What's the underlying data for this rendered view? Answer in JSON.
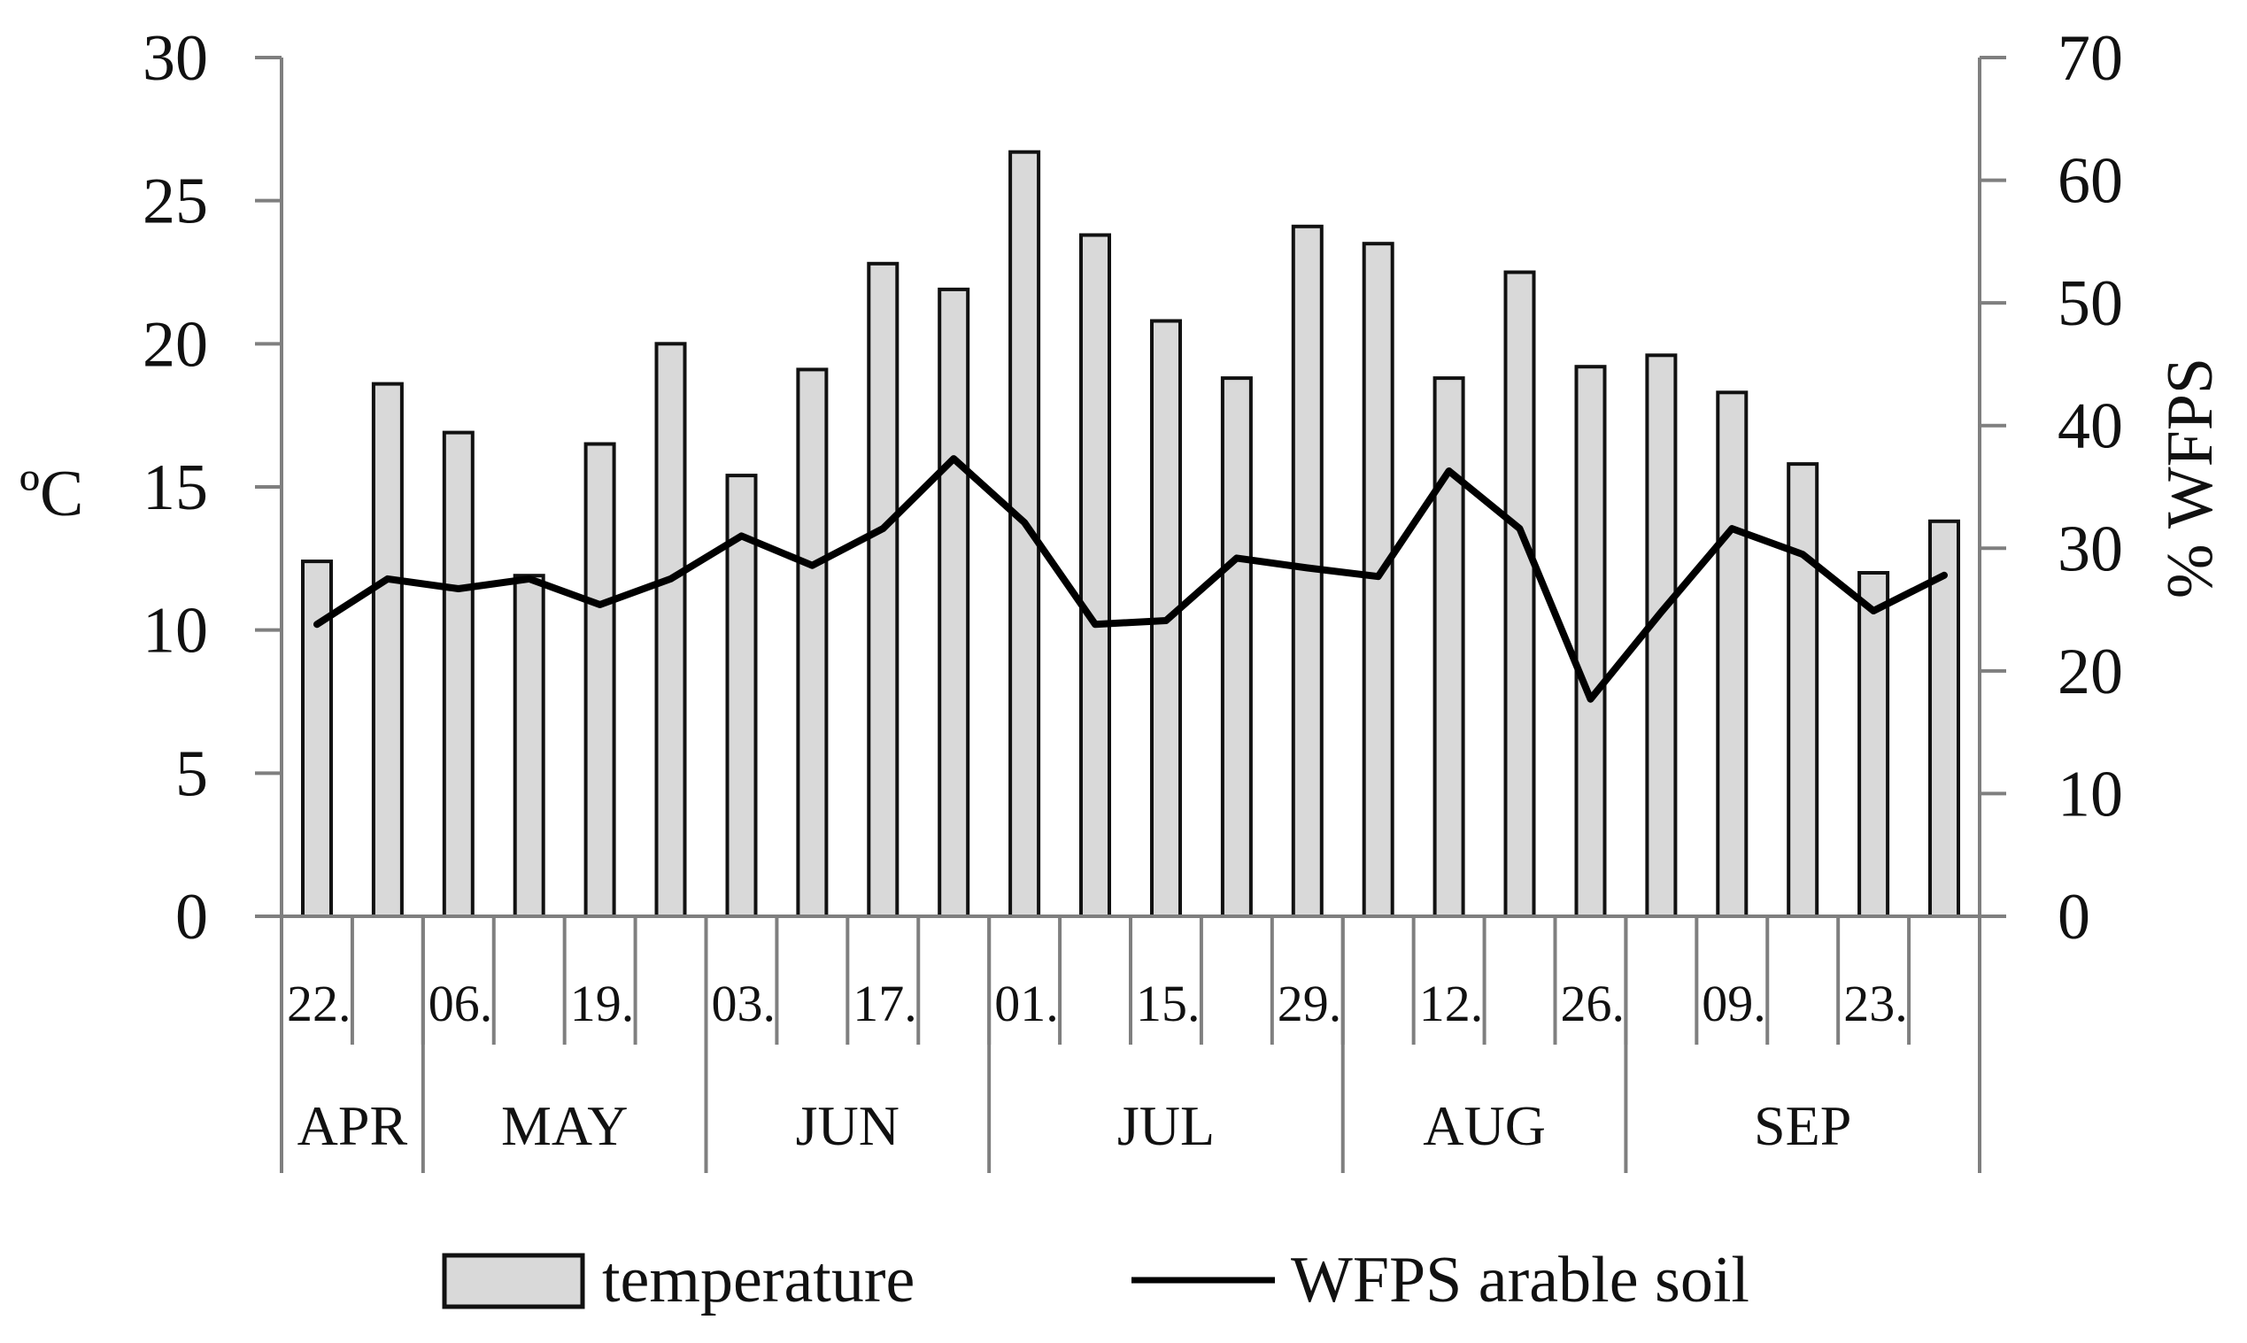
{
  "chart_data": {
    "type": "bar+line",
    "title": "",
    "legend_position": "bottom",
    "series": [
      {
        "name": "temperature",
        "type": "bar",
        "axis": "left",
        "color": "#d9d9d9",
        "values": [
          12.4,
          18.6,
          16.9,
          11.9,
          16.5,
          20.0,
          15.4,
          19.1,
          22.8,
          21.9,
          26.7,
          23.8,
          20.8,
          18.8,
          24.1,
          23.5,
          18.8,
          22.5,
          19.2,
          19.6,
          18.3,
          15.8,
          12.0,
          13.8
        ]
      },
      {
        "name": "WFPS arable soil",
        "type": "line",
        "axis": "right",
        "color": "#000000",
        "values": [
          23.8,
          27.5,
          26.7,
          27.5,
          25.4,
          27.5,
          31.0,
          28.6,
          31.6,
          37.3,
          32.1,
          23.8,
          24.1,
          29.2,
          28.4,
          27.7,
          36.3,
          31.6,
          17.7,
          24.8,
          31.6,
          29.5,
          24.9,
          27.8
        ]
      }
    ],
    "x_dates": [
      "22.",
      "",
      "06.",
      "",
      "19.",
      "",
      "03.",
      "",
      "17.",
      "",
      "01.",
      "",
      "15.",
      "",
      "29.",
      "",
      "12.",
      "",
      "26.",
      "",
      "09.",
      "",
      "23.",
      ""
    ],
    "months": [
      {
        "label": "APR",
        "start": 0,
        "count": 2
      },
      {
        "label": "MAY",
        "start": 2,
        "count": 4
      },
      {
        "label": "JUN",
        "start": 6,
        "count": 4
      },
      {
        "label": "JUL",
        "start": 10,
        "count": 5
      },
      {
        "label": "AUG",
        "start": 15,
        "count": 4
      },
      {
        "label": "SEP",
        "start": 19,
        "count": 5
      }
    ],
    "y_left": {
      "label": "ºC",
      "min": 0,
      "max": 30,
      "ticks": [
        0,
        5,
        10,
        15,
        20,
        25,
        30
      ]
    },
    "y_right": {
      "label": "% WFPS",
      "min": 0,
      "max": 70,
      "ticks": [
        0,
        10,
        20,
        30,
        40,
        50,
        60,
        70
      ]
    },
    "grid": false
  }
}
